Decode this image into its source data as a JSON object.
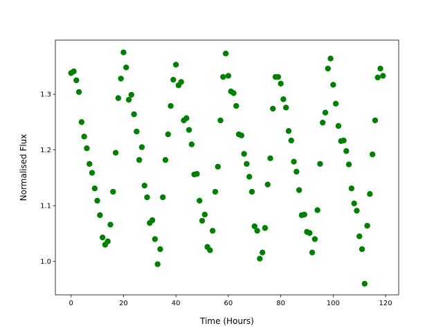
{
  "chart_data": {
    "type": "scatter",
    "title": "",
    "xlabel": "Time (Hours)",
    "ylabel": "Normalised Flux",
    "xlim": [
      -6,
      125
    ],
    "ylim": [
      0.94,
      1.397
    ],
    "xticks": [
      0,
      20,
      40,
      60,
      80,
      100,
      120
    ],
    "yticks": [
      1.0,
      1.1,
      1.2,
      1.3
    ],
    "xtick_labels": [
      "0",
      "20",
      "40",
      "60",
      "80",
      "100",
      "120"
    ],
    "ytick_labels": [
      "1.0",
      "1.1",
      "1.2",
      "1.3"
    ],
    "grid": false,
    "marker_color": "#008000",
    "x": [
      0,
      1,
      2,
      3,
      4,
      5,
      6,
      7,
      8,
      9,
      10,
      11,
      12,
      13,
      14,
      15,
      16,
      17,
      18,
      19,
      20,
      21,
      22,
      23,
      24,
      25,
      26,
      27,
      28,
      29,
      30,
      31,
      32,
      33,
      34,
      35,
      36,
      37,
      38,
      39,
      40,
      41,
      42,
      43,
      44,
      45,
      46,
      47,
      48,
      49,
      50,
      51,
      52,
      53,
      54,
      55,
      56,
      57,
      58,
      59,
      60,
      61,
      62,
      63,
      64,
      65,
      66,
      67,
      68,
      69,
      70,
      71,
      72,
      73,
      74,
      75,
      76,
      77,
      78,
      79,
      80,
      81,
      82,
      83,
      84,
      85,
      86,
      87,
      88,
      89,
      90,
      91,
      92,
      93,
      94,
      95,
      96,
      97,
      98,
      99,
      100,
      101,
      102,
      103,
      104,
      105,
      106,
      107,
      108,
      109,
      110,
      111,
      112,
      113,
      114,
      115,
      116,
      117,
      118,
      119
    ],
    "y": [
      1.338,
      1.341,
      1.325,
      1.304,
      1.25,
      1.224,
      1.203,
      1.175,
      1.159,
      1.131,
      1.109,
      1.083,
      1.043,
      1.03,
      1.036,
      1.066,
      1.125,
      1.195,
      1.293,
      1.328,
      1.375,
      1.348,
      1.29,
      1.299,
      1.264,
      1.233,
      1.182,
      1.205,
      1.136,
      1.115,
      1.069,
      1.074,
      1.04,
      0.995,
      1.022,
      1.115,
      1.182,
      1.228,
      1.279,
      1.326,
      1.353,
      1.316,
      1.322,
      1.253,
      1.257,
      1.236,
      1.21,
      1.156,
      1.157,
      1.109,
      1.073,
      1.084,
      1.026,
      1.02,
      1.055,
      1.125,
      1.17,
      1.253,
      1.331,
      1.373,
      1.333,
      1.305,
      1.302,
      1.279,
      1.228,
      1.226,
      1.193,
      1.175,
      1.152,
      1.125,
      1.063,
      1.055,
      1.005,
      1.016,
      1.06,
      1.138,
      1.185,
      1.274,
      1.331,
      1.331,
      1.319,
      1.291,
      1.276,
      1.234,
      1.217,
      1.179,
      1.161,
      1.128,
      1.083,
      1.084,
      1.053,
      1.051,
      1.016,
      1.04,
      1.092,
      1.175,
      1.249,
      1.267,
      1.346,
      1.364,
      1.317,
      1.283,
      1.243,
      1.216,
      1.217,
      1.198,
      1.174,
      1.131,
      1.104,
      1.091,
      1.045,
      1.022,
      0.96,
      1.064,
      1.121,
      1.192,
      1.253,
      1.33,
      1.346,
      1.333
    ]
  }
}
